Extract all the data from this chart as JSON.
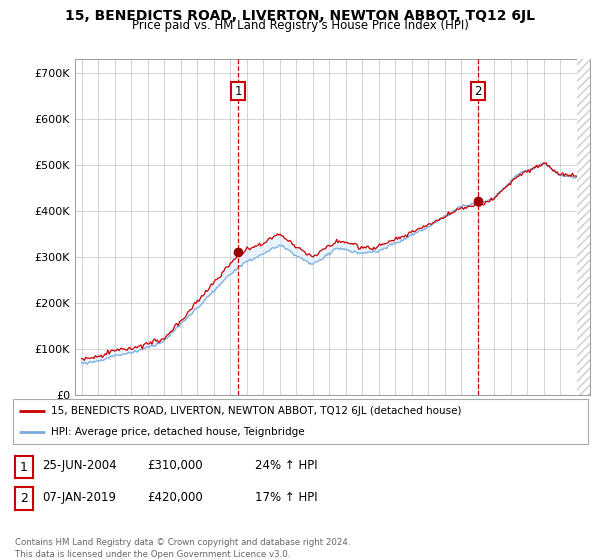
{
  "title": "15, BENEDICTS ROAD, LIVERTON, NEWTON ABBOT, TQ12 6JL",
  "subtitle": "Price paid vs. HM Land Registry's House Price Index (HPI)",
  "ylabel_ticks": [
    "£0",
    "£100K",
    "£200K",
    "£300K",
    "£400K",
    "£500K",
    "£600K",
    "£700K"
  ],
  "ylim": [
    0,
    730000
  ],
  "xlim_start": 1994.6,
  "xlim_end": 2025.8,
  "sale1_date": 2004.48,
  "sale1_price": 310000,
  "sale2_date": 2019.02,
  "sale2_price": 420000,
  "legend_line1": "15, BENEDICTS ROAD, LIVERTON, NEWTON ABBOT, TQ12 6JL (detached house)",
  "legend_line2": "HPI: Average price, detached house, Teignbridge",
  "annotation1_date": "25-JUN-2004",
  "annotation1_price": "£310,000",
  "annotation1_hpi": "24% ↑ HPI",
  "annotation2_date": "07-JAN-2019",
  "annotation2_price": "£420,000",
  "annotation2_hpi": "17% ↑ HPI",
  "footer": "Contains HM Land Registry data © Crown copyright and database right 2024.\nThis data is licensed under the Open Government Licence v3.0.",
  "line_color_red": "#cc0000",
  "line_color_blue": "#7aadde",
  "fill_color_blue": "#ddeeff",
  "background_color": "#ffffff",
  "grid_color": "#cccccc",
  "hatch_color": "#cccccc"
}
